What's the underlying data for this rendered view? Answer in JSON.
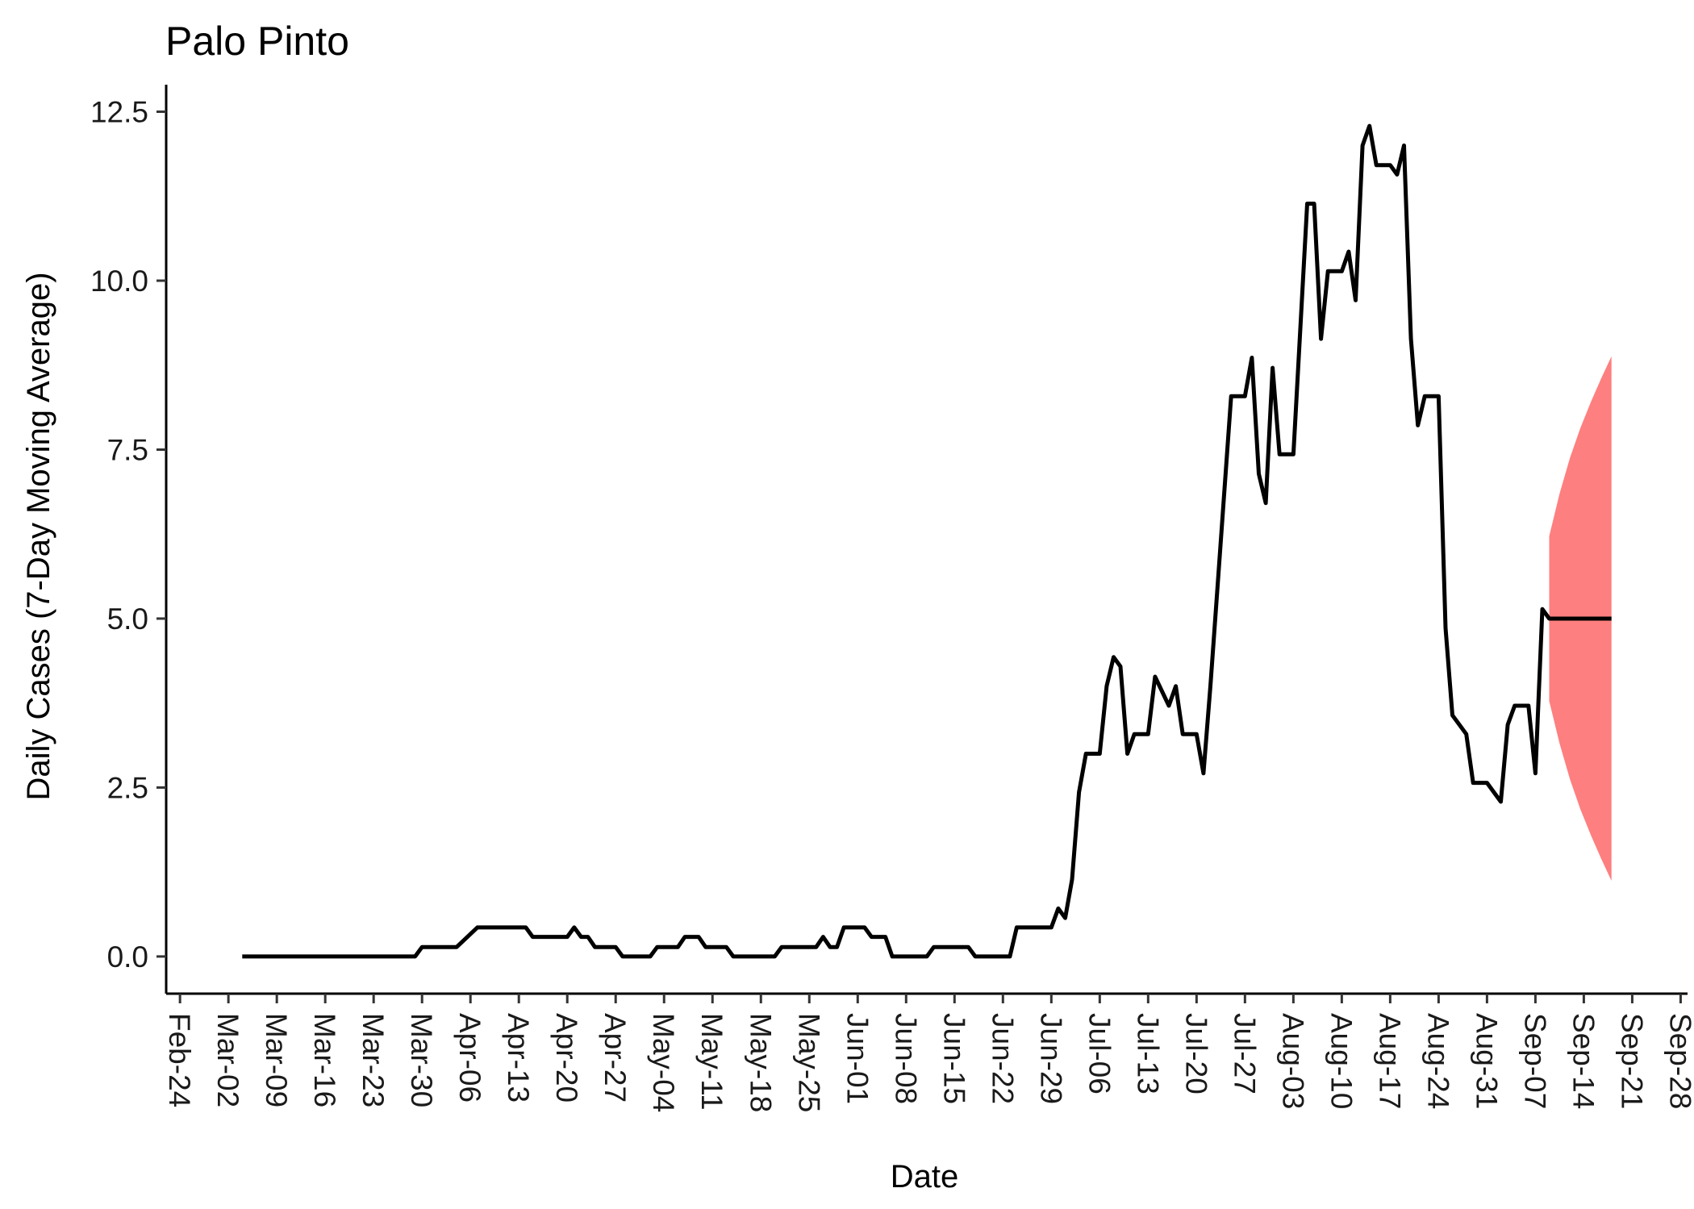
{
  "chart_data": {
    "type": "line",
    "title": "Palo Pinto",
    "xlabel": "Date",
    "ylabel": "Daily Cases (7-Day Moving Average)",
    "y_ticks": [
      "0.0",
      "2.5",
      "5.0",
      "7.5",
      "10.0",
      "12.5"
    ],
    "y_tick_values": [
      0,
      2.5,
      5,
      7.5,
      10,
      12.5
    ],
    "x_ticks": [
      "Feb-24",
      "Mar-02",
      "Mar-09",
      "Mar-16",
      "Mar-23",
      "Mar-30",
      "Apr-06",
      "Apr-13",
      "Apr-20",
      "Apr-27",
      "May-04",
      "May-11",
      "May-18",
      "May-25",
      "Jun-01",
      "Jun-08",
      "Jun-15",
      "Jun-22",
      "Jun-29",
      "Jul-06",
      "Jul-13",
      "Jul-20",
      "Jul-27",
      "Aug-03",
      "Aug-10",
      "Aug-17",
      "Aug-24",
      "Aug-31",
      "Sep-07",
      "Sep-14",
      "Sep-21",
      "Sep-28"
    ],
    "x_range_days": [
      -2,
      218
    ],
    "ylim": [
      -0.55,
      12.9
    ],
    "grid": false,
    "legend": "none",
    "colors": {
      "line": "#000000",
      "forecast_band": "#fe7f7f"
    },
    "series": [
      {
        "type": "line",
        "points": [
          [
            9,
            0
          ],
          [
            34,
            0
          ],
          [
            35,
            0.14
          ],
          [
            40,
            0.14
          ],
          [
            43,
            0.43
          ],
          [
            50,
            0.43
          ],
          [
            51,
            0.29
          ],
          [
            56,
            0.29
          ],
          [
            57,
            0.43
          ],
          [
            58,
            0.29
          ],
          [
            59,
            0.29
          ],
          [
            60,
            0.14
          ],
          [
            63,
            0.14
          ],
          [
            64,
            0
          ],
          [
            68,
            0
          ],
          [
            69,
            0.14
          ],
          [
            72,
            0.14
          ],
          [
            73,
            0.29
          ],
          [
            75,
            0.29
          ],
          [
            76,
            0.14
          ],
          [
            79,
            0.14
          ],
          [
            80,
            0
          ],
          [
            86,
            0
          ],
          [
            87,
            0.14
          ],
          [
            92,
            0.14
          ],
          [
            93,
            0.29
          ],
          [
            94,
            0.14
          ],
          [
            95,
            0.14
          ],
          [
            96,
            0.43
          ],
          [
            99,
            0.43
          ],
          [
            100,
            0.29
          ],
          [
            102,
            0.29
          ],
          [
            103,
            0
          ],
          [
            108,
            0
          ],
          [
            109,
            0.14
          ],
          [
            114,
            0.14
          ],
          [
            115,
            0
          ],
          [
            120,
            0
          ],
          [
            121,
            0.43
          ],
          [
            126,
            0.43
          ],
          [
            127,
            0.71
          ],
          [
            128,
            0.57
          ],
          [
            129,
            1.14
          ],
          [
            130,
            2.43
          ],
          [
            131,
            3
          ],
          [
            133,
            3
          ],
          [
            134,
            4
          ],
          [
            135,
            4.43
          ],
          [
            136,
            4.29
          ],
          [
            137,
            3
          ],
          [
            138,
            3.29
          ],
          [
            140,
            3.29
          ],
          [
            141,
            4.14
          ],
          [
            143,
            3.71
          ],
          [
            144,
            4
          ],
          [
            145,
            3.29
          ],
          [
            147,
            3.29
          ],
          [
            148,
            2.71
          ],
          [
            149,
            4
          ],
          [
            150,
            5.43
          ],
          [
            152,
            8.29
          ],
          [
            154,
            8.29
          ],
          [
            155,
            8.86
          ],
          [
            156,
            7.14
          ],
          [
            157,
            6.71
          ],
          [
            158,
            8.71
          ],
          [
            159,
            7.43
          ],
          [
            161,
            7.43
          ],
          [
            163,
            11.14
          ],
          [
            164,
            11.14
          ],
          [
            165,
            9.14
          ],
          [
            166,
            10.14
          ],
          [
            168,
            10.14
          ],
          [
            169,
            10.43
          ],
          [
            170,
            9.71
          ],
          [
            171,
            12
          ],
          [
            172,
            12.29
          ],
          [
            173,
            11.71
          ],
          [
            175,
            11.71
          ],
          [
            176,
            11.57
          ],
          [
            177,
            12
          ],
          [
            178,
            9.14
          ],
          [
            179,
            7.86
          ],
          [
            180,
            8.29
          ],
          [
            182,
            8.29
          ],
          [
            183,
            4.86
          ],
          [
            184,
            3.57
          ],
          [
            186,
            3.29
          ],
          [
            187,
            2.57
          ],
          [
            189,
            2.57
          ],
          [
            191,
            2.29
          ],
          [
            192,
            3.43
          ],
          [
            193,
            3.71
          ],
          [
            195,
            3.71
          ],
          [
            196,
            2.71
          ],
          [
            197,
            5.14
          ],
          [
            198,
            5
          ],
          [
            207,
            5
          ]
        ]
      }
    ],
    "forecast_band": {
      "x": [
        198,
        199.5,
        201,
        202.5,
        204,
        205.5,
        207
      ],
      "upper": [
        6.22,
        6.85,
        7.38,
        7.82,
        8.2,
        8.55,
        8.88
      ],
      "lower": [
        3.78,
        3.15,
        2.62,
        2.18,
        1.8,
        1.45,
        1.12
      ]
    }
  }
}
